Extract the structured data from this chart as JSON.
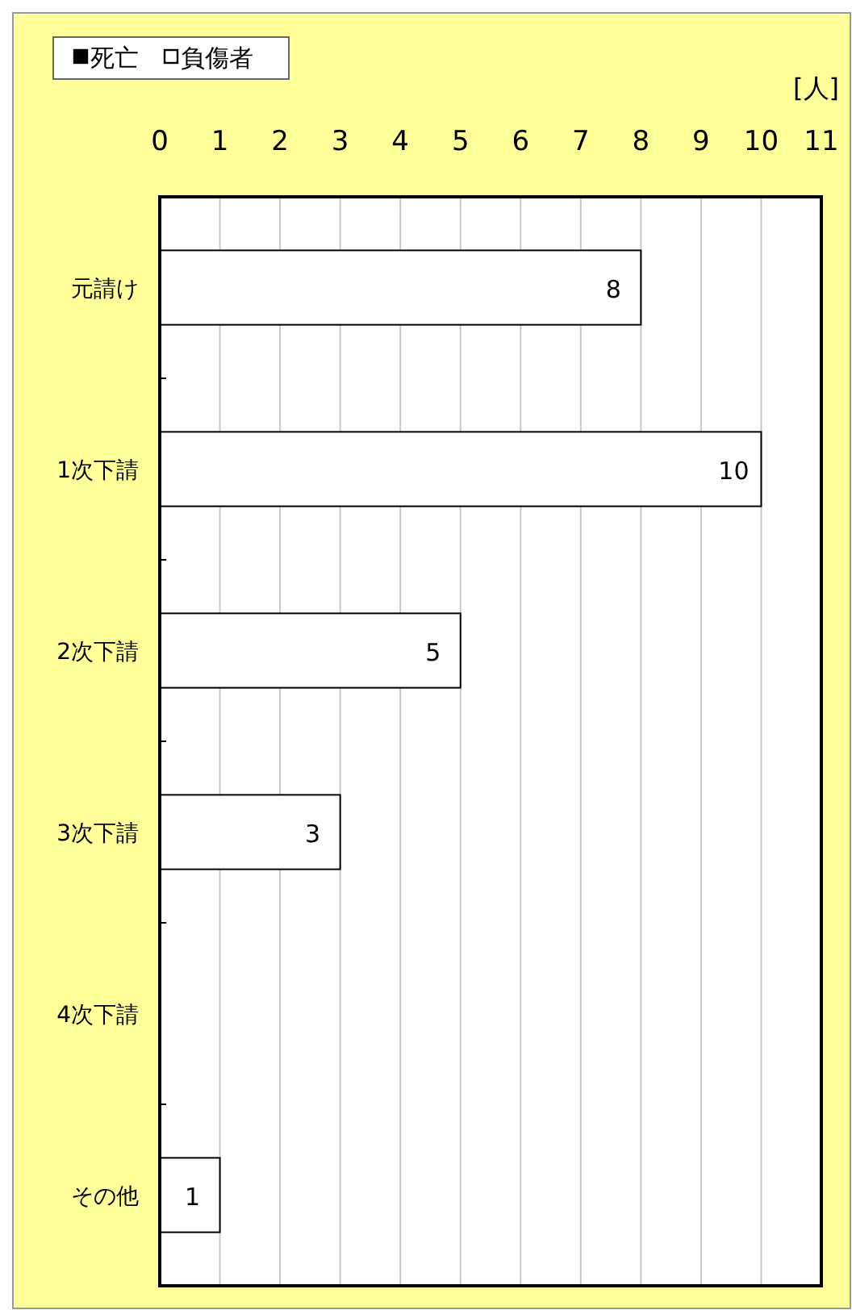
{
  "chart_data": {
    "type": "bar",
    "orientation": "horizontal",
    "xlabel": "[人]",
    "categories": [
      "元請け",
      "1次下請",
      "2次下請",
      "3次下請",
      "4次下請",
      "その他"
    ],
    "series": [
      {
        "name": "死亡",
        "color": "#000000",
        "values": [
          0,
          0,
          0,
          0,
          0,
          0
        ]
      },
      {
        "name": "負傷者",
        "color": "#ffffff",
        "values": [
          8,
          10,
          5,
          3,
          0,
          1
        ],
        "value_labels": [
          "8",
          "10",
          "5",
          "3",
          null,
          "1"
        ]
      }
    ],
    "xlim": [
      0,
      11
    ],
    "xticks": [
      0,
      1,
      2,
      3,
      4,
      5,
      6,
      7,
      8,
      9,
      10,
      11
    ],
    "grid": "x",
    "legend": "top left"
  }
}
